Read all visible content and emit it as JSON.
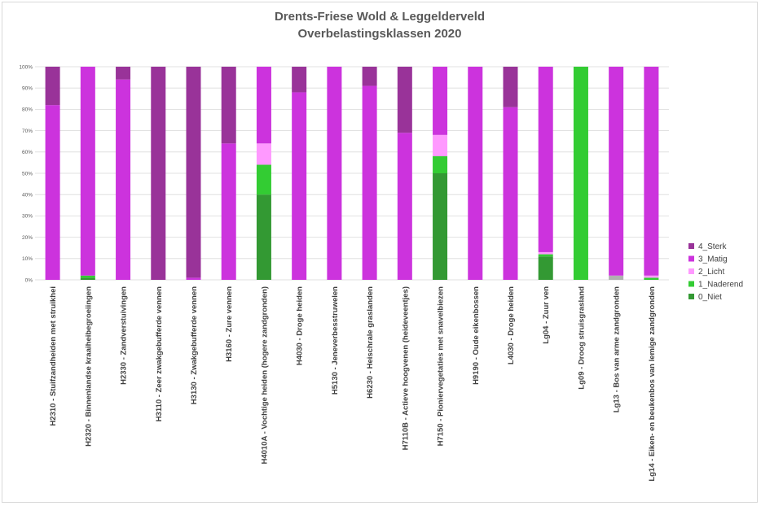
{
  "chart_data": {
    "type": "bar",
    "stacked": "percent",
    "title": "Drents-Friese Wold & Leggelderveld",
    "subtitle": "Overbelastingsklassen 2020",
    "xlabel": "",
    "ylabel": "",
    "ylim": [
      0,
      100
    ],
    "yticks": [
      "0%",
      "10%",
      "20%",
      "30%",
      "40%",
      "50%",
      "60%",
      "70%",
      "80%",
      "90%",
      "100%"
    ],
    "grid": true,
    "legend_position": "right",
    "categories": [
      "H2310 - Stuifzandheiden met struikhei",
      "H2320 - Binnenlandse kraaiheibegroeiingen",
      "H2330 - Zandverstuivingen",
      "H3110 - Zeer zwakgebufferde vennen",
      "H3130 - Zwakgebufferde vennen",
      "H3160 - Zure vennen",
      "H4010A - Vochtige heiden (hogere zandgronden)",
      "H4030 - Droge heiden",
      "H5130 - Jeneverbesstruwelen",
      "H6230 - Heischrale graslanden",
      "H7110B - Actieve hoogvenen (heideveentjes)",
      "H7150 - Pioniervegetaties met snavelbiezen",
      "H9190 - Oude eikenbossen",
      "L4030 - Droge heiden",
      "Lg04 - Zuur ven",
      "Lg09 - Droog struisgrasland",
      "Lg13 - Bos van arme zandgronden",
      "Lg14 - Eiken- en beukenbos van lemige zandgronden"
    ],
    "series": [
      {
        "name": "0_Niet",
        "color": "#339933",
        "values": [
          0,
          1,
          0,
          0,
          0,
          0,
          40,
          0,
          0,
          0,
          0,
          50,
          0,
          0,
          11,
          0,
          0,
          0
        ]
      },
      {
        "name": "1_Naderend",
        "color": "#33cc33",
        "values": [
          0,
          1,
          0,
          0,
          0,
          0,
          14,
          0,
          0,
          0,
          0,
          8,
          0,
          0,
          1,
          100,
          0,
          1
        ]
      },
      {
        "name": "2_Licht",
        "color": "#ff99ff",
        "values": [
          0,
          0,
          0,
          0,
          0,
          0,
          10,
          0,
          0,
          0,
          0,
          10,
          0,
          0,
          1,
          0,
          0,
          1
        ]
      },
      {
        "name": "3_Matig",
        "color": "#cc33dd",
        "values": [
          82,
          98,
          94,
          0,
          1,
          64,
          36,
          88,
          100,
          91,
          69,
          32,
          100,
          81,
          87,
          0,
          98,
          98
        ]
      },
      {
        "name": "4_Sterk",
        "color": "#993399",
        "values": [
          18,
          0,
          6,
          100,
          99,
          36,
          0,
          12,
          0,
          9,
          31,
          0,
          0,
          19,
          0,
          0,
          0,
          0
        ]
      }
    ],
    "extra_segments": [
      {
        "category_index": 16,
        "color": "#b0b0b0",
        "value": 2
      }
    ],
    "legend_order": [
      "4_Sterk",
      "3_Matig",
      "2_Licht",
      "1_Naderend",
      "0_Niet"
    ]
  }
}
